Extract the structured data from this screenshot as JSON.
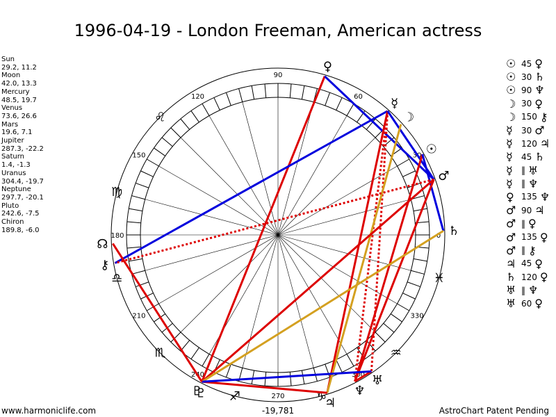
{
  "title": "1996-04-19 - London Freeman, American actress",
  "planets": [
    {
      "name": "Sun",
      "coords": "29.2, 11.2"
    },
    {
      "name": "Moon",
      "coords": "42.0, 13.3"
    },
    {
      "name": "Mercury",
      "coords": "48.5, 19.7"
    },
    {
      "name": "Venus",
      "coords": "73.6, 26.6"
    },
    {
      "name": "Mars",
      "coords": "19.6, 7.1"
    },
    {
      "name": "Jupiter",
      "coords": "287.3, -22.2"
    },
    {
      "name": "Saturn",
      "coords": "1.4, -1.3"
    },
    {
      "name": "Uranus",
      "coords": "304.4, -19.7"
    },
    {
      "name": "Neptune",
      "coords": "297.7, -20.1"
    },
    {
      "name": "Pluto",
      "coords": "242.6, -7.5"
    },
    {
      "name": "Chiron",
      "coords": "189.8, -6.0"
    }
  ],
  "aspects": [
    {
      "p1": "☉",
      "orb": "45",
      "p2": "♀"
    },
    {
      "p1": "☉",
      "orb": "30",
      "p2": "♄"
    },
    {
      "p1": "☉",
      "orb": "90",
      "p2": "♆"
    },
    {
      "p1": "☽",
      "orb": "30",
      "p2": "♀"
    },
    {
      "p1": "☽",
      "orb": "150",
      "p2": "⚷"
    },
    {
      "p1": "☿",
      "orb": "30",
      "p2": "♂"
    },
    {
      "p1": "☿",
      "orb": "120",
      "p2": "♃"
    },
    {
      "p1": "☿",
      "orb": "45",
      "p2": "♄"
    },
    {
      "p1": "☿",
      "orb": "‖",
      "p2": "♅"
    },
    {
      "p1": "☿",
      "orb": "‖",
      "p2": "♆"
    },
    {
      "p1": "♀",
      "orb": "135",
      "p2": "♆"
    },
    {
      "p1": "♂",
      "orb": "90",
      "p2": "♃"
    },
    {
      "p1": "♂",
      "orb": "‖",
      "p2": "♀"
    },
    {
      "p1": "♂",
      "orb": "135",
      "p2": "♀"
    },
    {
      "p1": "♂",
      "orb": "‖",
      "p2": "⚷"
    },
    {
      "p1": "♃",
      "orb": "45",
      "p2": "♀"
    },
    {
      "p1": "♄",
      "orb": "120",
      "p2": "♀"
    },
    {
      "p1": "♅",
      "orb": "‖",
      "p2": "♆"
    },
    {
      "p1": "♅",
      "orb": "60",
      "p2": "♀"
    }
  ],
  "degree_labels": [
    "0",
    "30",
    "60",
    "90",
    "120",
    "150",
    "180",
    "210",
    "240",
    "270",
    "300",
    "330"
  ],
  "zodiac_signs": [
    "♓",
    "♒",
    "♑",
    "♐",
    "♏",
    "♎",
    "♍",
    "♌"
  ],
  "chart_planets": [
    {
      "glyph": "☉",
      "name": "sun",
      "lon": 29.2
    },
    {
      "glyph": "☽",
      "name": "moon",
      "lon": 42.0
    },
    {
      "glyph": "☿",
      "name": "mercury",
      "lon": 48.5
    },
    {
      "glyph": "♀",
      "name": "venus",
      "lon": 73.6
    },
    {
      "glyph": "♂",
      "name": "mars",
      "lon": 19.6
    },
    {
      "glyph": "♃",
      "name": "jupiter",
      "lon": 287.3
    },
    {
      "glyph": "♄",
      "name": "saturn",
      "lon": 1.4
    },
    {
      "glyph": "♅",
      "name": "uranus",
      "lon": 304.4
    },
    {
      "glyph": "♆",
      "name": "neptune",
      "lon": 297.7
    },
    {
      "glyph": "♇",
      "name": "pluto",
      "lon": 242.6
    },
    {
      "glyph": "⚷",
      "name": "chiron",
      "lon": 189.8
    },
    {
      "glyph": "☊",
      "name": "node",
      "lon": 183.0
    },
    {
      "glyph": "♇",
      "name": "pluto-mark",
      "lon": 244.0
    }
  ],
  "aspect_lines": [
    {
      "a": "venus",
      "b": "pluto",
      "color": "#dd0000",
      "style": "solid"
    },
    {
      "a": "venus",
      "b": "mars",
      "color": "#0000dd",
      "style": "solid"
    },
    {
      "a": "mercury",
      "b": "chiron",
      "color": "#0000dd",
      "style": "solid"
    },
    {
      "a": "mercury",
      "b": "jupiter",
      "color": "#dd0000",
      "style": "solid"
    },
    {
      "a": "mercury",
      "b": "uranus",
      "color": "#dd0000",
      "style": "dotted"
    },
    {
      "a": "mercury",
      "b": "neptune",
      "color": "#dd0000",
      "style": "dotted"
    },
    {
      "a": "mercury",
      "b": "mars",
      "color": "#0000dd",
      "style": "solid"
    },
    {
      "a": "moon",
      "b": "jupiter",
      "color": "#d4a020",
      "style": "solid"
    },
    {
      "a": "sun",
      "b": "neptune",
      "color": "#dd0000",
      "style": "solid"
    },
    {
      "a": "sun",
      "b": "saturn",
      "color": "#0000dd",
      "style": "solid"
    },
    {
      "a": "mars",
      "b": "chiron",
      "color": "#dd0000",
      "style": "dotted"
    },
    {
      "a": "mars",
      "b": "pluto",
      "color": "#dd0000",
      "style": "solid"
    },
    {
      "a": "mars",
      "b": "neptune",
      "color": "#dd0000",
      "style": "solid"
    },
    {
      "a": "saturn",
      "b": "pluto",
      "color": "#d4a020",
      "style": "solid"
    },
    {
      "a": "jupiter",
      "b": "pluto",
      "color": "#dd0000",
      "style": "solid"
    },
    {
      "a": "uranus",
      "b": "neptune",
      "color": "#dd0000",
      "style": "solid"
    },
    {
      "a": "uranus",
      "b": "pluto",
      "color": "#0000dd",
      "style": "solid"
    },
    {
      "a": "pluto",
      "b": "node",
      "color": "#dd0000",
      "style": "solid"
    }
  ],
  "footer": {
    "left": "www.harmoniclife.com",
    "center": "-19,781",
    "right": "AstroChart Patent Pending"
  }
}
